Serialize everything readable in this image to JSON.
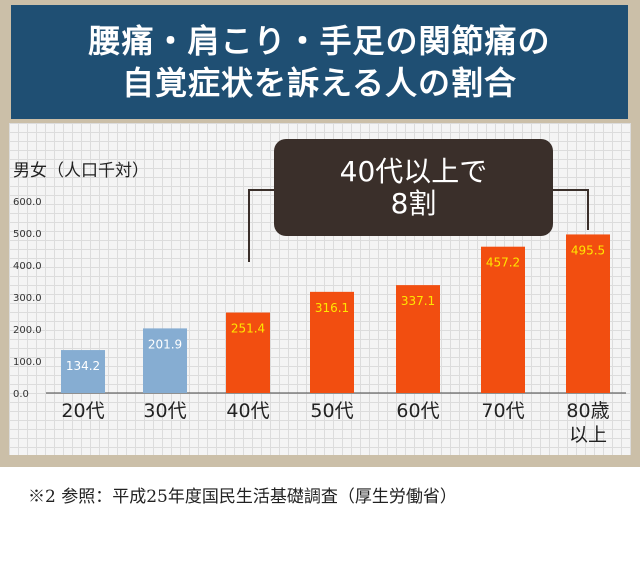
{
  "title": {
    "line1": "腰痛・肩こり・手足の関節痛の",
    "line2": "自覚症状を訴える人の割合"
  },
  "callout": {
    "line1": "40代以上で",
    "line2": "8割"
  },
  "footnote": "※2 参照：平成25年度国民生活基礎調査（厚生労働省）",
  "colors": {
    "title_bg": "#1f4f73",
    "frame": "#cbbfa8",
    "bar_young": "#86add2",
    "bar_old": "#f24e10",
    "value_young": "#ffffff",
    "value_old": "#ffe600",
    "callout_bg": "#3a2f2a"
  },
  "chart_data": {
    "type": "bar",
    "ylabel": "男女（人口千対）",
    "ylim": [
      0,
      600
    ],
    "yticks": [
      "0.0",
      "100.0",
      "200.0",
      "300.0",
      "400.0",
      "500.0",
      "600.0"
    ],
    "categories": [
      "20代",
      "30代",
      "40代",
      "50代",
      "60代",
      "70代",
      "80歳以上"
    ],
    "category_lines": [
      [
        "20代"
      ],
      [
        "30代"
      ],
      [
        "40代"
      ],
      [
        "50代"
      ],
      [
        "60代"
      ],
      [
        "70代"
      ],
      [
        "80歳",
        "以上"
      ]
    ],
    "values": [
      134.2,
      201.9,
      251.4,
      316.1,
      337.1,
      457.2,
      495.5
    ],
    "value_labels": [
      "134.2",
      "201.9",
      "251.4",
      "316.1",
      "337.1",
      "457.2",
      "495.5"
    ],
    "highlight_from_index": 2,
    "grid": true
  }
}
